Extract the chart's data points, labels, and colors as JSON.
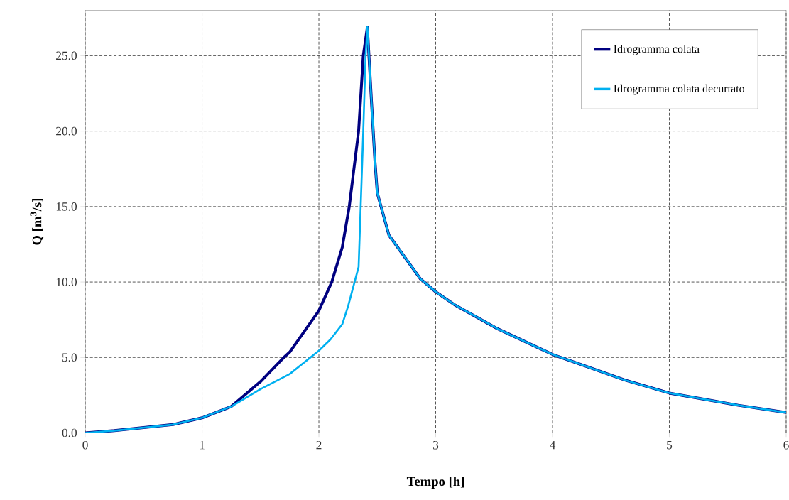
{
  "chart_data": {
    "type": "line",
    "xlabel": "Tempo [h]",
    "ylabel": "Q [m$^{3}$/s]",
    "xlim": [
      0,
      6
    ],
    "xticks": [
      0,
      1,
      2,
      3,
      4,
      5,
      6
    ],
    "ylim": [
      0,
      28
    ],
    "yticks": [
      {
        "value": 0,
        "label": "0.0"
      },
      {
        "value": 5,
        "label": "5.0"
      },
      {
        "value": 10,
        "label": "10.0"
      },
      {
        "value": 15,
        "label": "15.0"
      },
      {
        "value": 20,
        "label": "20.0"
      },
      {
        "value": 25,
        "label": "25.0"
      }
    ],
    "grid": true,
    "legend": "top right",
    "line_style": "solid",
    "marker": "none",
    "series": [
      {
        "name": "Idrogramma colata",
        "color": "#000080",
        "x": [
          0,
          0.25,
          0.5,
          0.75,
          1,
          1.25,
          1.5,
          1.7,
          1.75,
          2,
          2.11,
          2.2,
          2.26,
          2.34,
          2.38,
          2.415,
          2.45,
          2.48,
          2.5,
          2.6,
          2.87,
          3,
          3.16,
          3.53,
          4,
          4.62,
          5,
          5.59,
          6
        ],
        "values": [
          0,
          0.15,
          0.35,
          0.55,
          1.0,
          1.75,
          3.4,
          5.0,
          5.35,
          8.1,
          10.0,
          12.3,
          15.0,
          20.0,
          25.0,
          26.9,
          22.0,
          18.0,
          15.9,
          13.1,
          10.2,
          9.35,
          8.5,
          6.9,
          5.2,
          3.5,
          2.64,
          1.83,
          1.35
        ]
      },
      {
        "name": "Idrogramma colata decurtato",
        "color": "#00b0f0",
        "x": [
          0,
          0.25,
          0.5,
          0.75,
          1,
          1.25,
          1.5,
          1.75,
          2,
          2.1,
          2.2,
          2.25,
          2.34,
          2.38,
          2.4,
          2.415,
          2.45,
          2.48,
          2.5,
          2.6,
          2.87,
          3,
          3.16,
          3.53,
          4,
          4.62,
          5,
          5.59,
          6
        ],
        "values": [
          0,
          0.15,
          0.35,
          0.55,
          1.0,
          1.75,
          2.9,
          3.9,
          5.45,
          6.2,
          7.2,
          8.4,
          11.0,
          20.0,
          25.0,
          26.9,
          22.0,
          18.0,
          15.9,
          13.1,
          10.2,
          9.35,
          8.5,
          6.9,
          5.2,
          3.5,
          2.64,
          1.83,
          1.35
        ]
      }
    ]
  }
}
